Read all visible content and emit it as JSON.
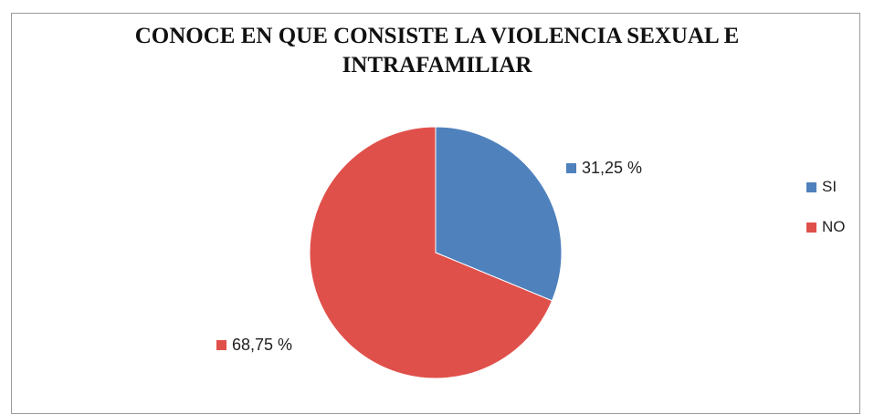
{
  "chart_data": {
    "type": "pie",
    "title_lines": [
      "CONOCE EN QUE CONSISTE LA VIOLENCIA SEXUAL E",
      "INTRAFAMILIAR"
    ],
    "categories": [
      "SI",
      "NO"
    ],
    "values": [
      31.25,
      68.75
    ],
    "data_labels": [
      "31,25 %",
      "68,75 %"
    ],
    "colors": [
      "#4F81BD",
      "#E0504B"
    ],
    "legend_position": "right"
  }
}
